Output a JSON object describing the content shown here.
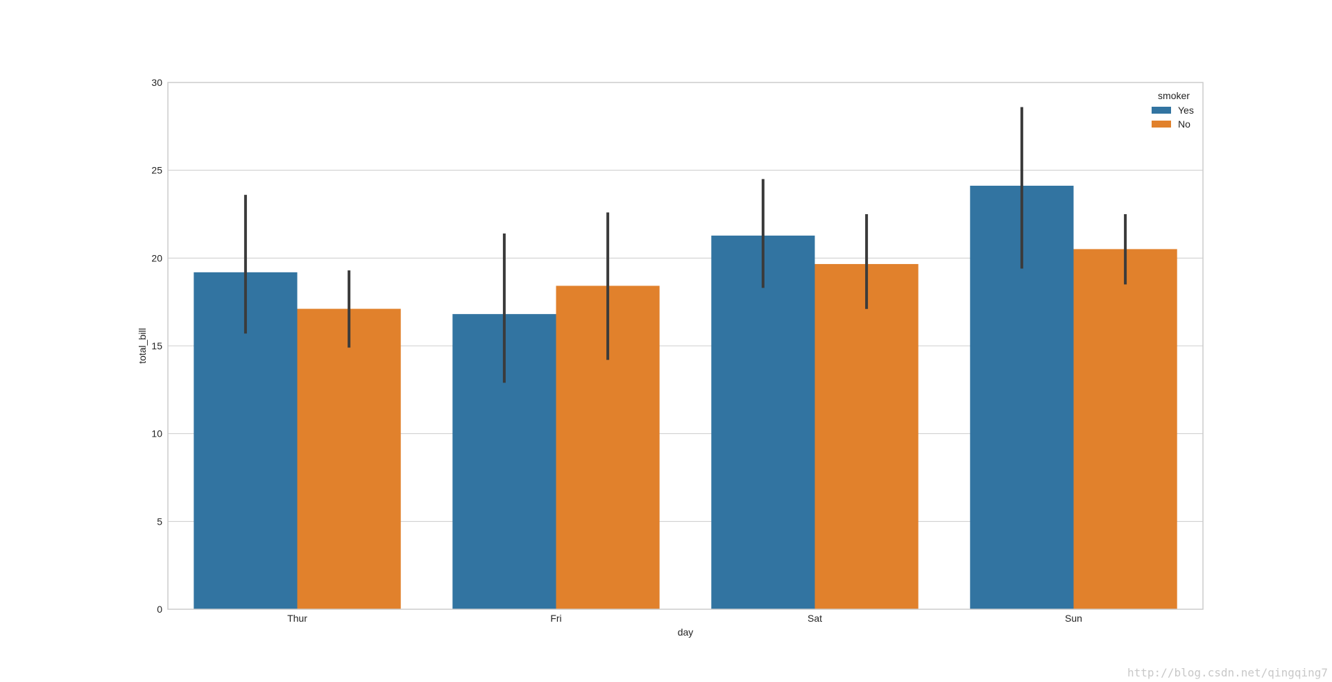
{
  "chart_data": {
    "type": "bar",
    "xlabel": "day",
    "ylabel": "total_bill",
    "categories": [
      "Thur",
      "Fri",
      "Sat",
      "Sun"
    ],
    "ylim": [
      0,
      30
    ],
    "yticks": [
      0,
      5,
      10,
      15,
      20,
      25,
      30
    ],
    "grid": "horizontal",
    "legend": {
      "title": "smoker",
      "placement": "top-right"
    },
    "series": [
      {
        "name": "Yes",
        "color": "#3274a1",
        "values": [
          19.19,
          16.81,
          21.28,
          24.12
        ],
        "ci": [
          [
            15.7,
            23.6
          ],
          [
            12.9,
            21.4
          ],
          [
            18.3,
            24.5
          ],
          [
            19.4,
            28.6
          ]
        ]
      },
      {
        "name": "No",
        "color": "#e1812c",
        "values": [
          17.11,
          18.42,
          19.66,
          20.51
        ],
        "ci": [
          [
            14.9,
            19.3
          ],
          [
            14.2,
            22.6
          ],
          [
            17.1,
            22.5
          ],
          [
            18.5,
            22.5
          ]
        ]
      }
    ],
    "errorbar_color": "#3b3b3b",
    "watermark": "http://blog.csdn.net/qingqing7"
  }
}
